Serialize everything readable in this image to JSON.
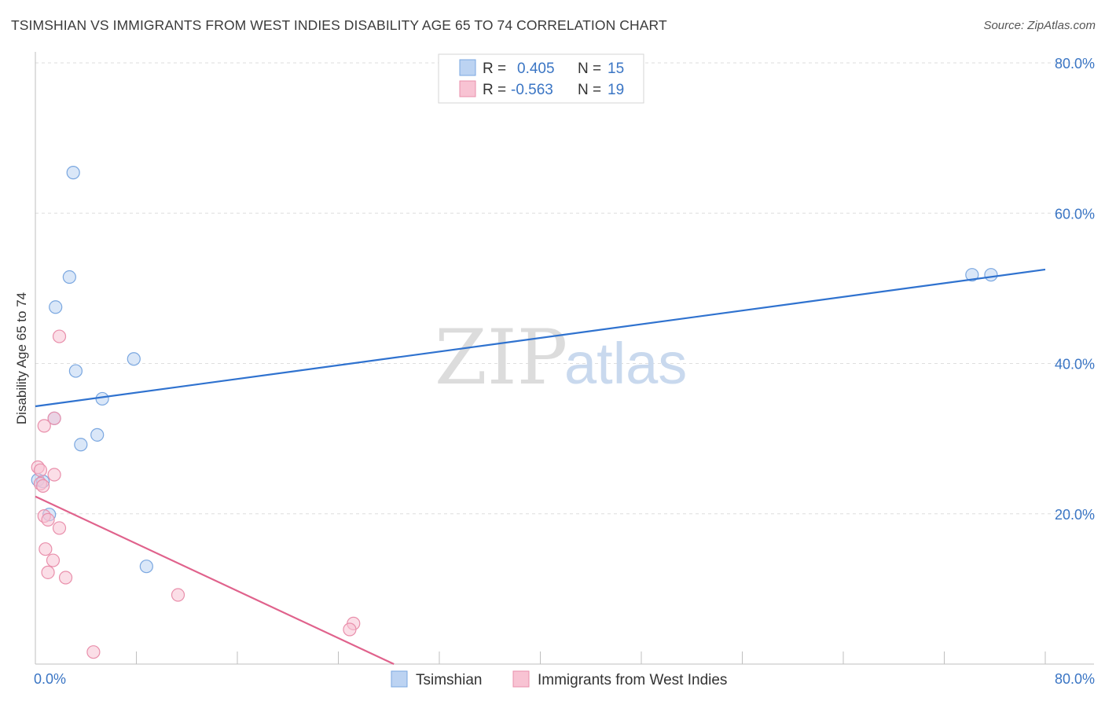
{
  "title": "TSIMSHIAN VS IMMIGRANTS FROM WEST INDIES DISABILITY AGE 65 TO 74 CORRELATION CHART",
  "source": "Source: ZipAtlas.com",
  "watermark": {
    "zip": "ZIP",
    "atlas": "atlas"
  },
  "chart_data": {
    "type": "scatter",
    "xlabel": "",
    "ylabel": "Disability Age 65 to 74",
    "xlim": [
      0,
      80
    ],
    "ylim": [
      0,
      80
    ],
    "x_tick_labels": [
      {
        "value": 0,
        "label": "0.0%"
      },
      {
        "value": 80,
        "label": "80.0%"
      }
    ],
    "y_tick_labels": [
      {
        "value": 20,
        "label": "20.0%"
      },
      {
        "value": 40,
        "label": "40.0%"
      },
      {
        "value": 60,
        "label": "60.0%"
      },
      {
        "value": 80,
        "label": "80.0%"
      }
    ],
    "grid": "horizontal dashed",
    "legend_position": "top-center",
    "series": [
      {
        "name": "Tsimshian",
        "color": "#7aa7e0",
        "fill": "#bcd3f2",
        "line_color": "#2f72cf",
        "R": "0.405",
        "N": "15",
        "points": [
          [
            3.0,
            65.4
          ],
          [
            2.7,
            51.5
          ],
          [
            1.6,
            47.5
          ],
          [
            3.2,
            39.0
          ],
          [
            7.8,
            40.6
          ],
          [
            5.3,
            35.3
          ],
          [
            1.5,
            32.7
          ],
          [
            4.9,
            30.5
          ],
          [
            3.6,
            29.2
          ],
          [
            0.2,
            24.5
          ],
          [
            0.6,
            24.3
          ],
          [
            1.1,
            19.9
          ],
          [
            8.8,
            13.0
          ],
          [
            74.2,
            51.8
          ],
          [
            75.7,
            51.8
          ]
        ],
        "trend": {
          "x": [
            0,
            80
          ],
          "y": [
            34.3,
            52.5
          ]
        }
      },
      {
        "name": "Immigrants from West Indies",
        "color": "#e98fab",
        "fill": "#f8c3d3",
        "line_color": "#e0628c",
        "R": "-0.563",
        "N": "19",
        "points": [
          [
            1.9,
            43.6
          ],
          [
            1.5,
            32.7
          ],
          [
            0.7,
            31.7
          ],
          [
            0.2,
            26.2
          ],
          [
            0.4,
            25.8
          ],
          [
            1.5,
            25.2
          ],
          [
            0.4,
            24.0
          ],
          [
            0.6,
            23.7
          ],
          [
            0.7,
            19.7
          ],
          [
            1.0,
            19.2
          ],
          [
            1.9,
            18.1
          ],
          [
            0.8,
            15.3
          ],
          [
            1.4,
            13.8
          ],
          [
            1.0,
            12.2
          ],
          [
            2.4,
            11.5
          ],
          [
            11.3,
            9.2
          ],
          [
            25.2,
            5.4
          ],
          [
            24.9,
            4.6
          ],
          [
            4.6,
            1.6
          ]
        ],
        "trend": {
          "x": [
            0,
            28.4
          ],
          "y": [
            22.3,
            0
          ]
        }
      }
    ]
  },
  "legend": {
    "r_label": "R =",
    "n_label": "N =",
    "items": [
      {
        "r": "0.405",
        "n": "15"
      },
      {
        "r": "-0.563",
        "n": "19"
      }
    ]
  },
  "bottom_legend": [
    "Tsimshian",
    "Immigrants from West Indies"
  ]
}
